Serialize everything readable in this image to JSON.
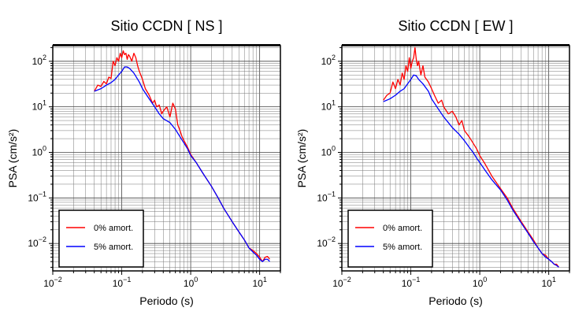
{
  "chart_data": [
    {
      "type": "line",
      "title": "Sitio CCDN [ NS ]",
      "xlabel": "Periodo (s)",
      "ylabel": "PSA (cm/s²)",
      "xscale": "log",
      "yscale": "log",
      "xlim": [
        0.01,
        20
      ],
      "ylim": [
        0.0025,
        220
      ],
      "grid": true,
      "legend_position": "bottom-left",
      "xticks": [
        {
          "value": 0.01,
          "base": "10",
          "exp": "−2"
        },
        {
          "value": 0.1,
          "base": "10",
          "exp": "−1"
        },
        {
          "value": 1,
          "base": "10",
          "exp": "0"
        },
        {
          "value": 10,
          "base": "10",
          "exp": "1"
        }
      ],
      "yticks": [
        {
          "value": 100,
          "label": "10²",
          "base": "10",
          "exp": "2"
        },
        {
          "value": 10,
          "label": "10¹",
          "base": "10",
          "exp": "1"
        },
        {
          "value": 1,
          "label": "10⁰",
          "base": "10",
          "exp": "0"
        },
        {
          "value": 0.1,
          "label": "10⁻¹",
          "base": "10",
          "exp": "−1"
        },
        {
          "value": 0.01,
          "label": "10⁻²",
          "base": "10",
          "exp": "−2"
        }
      ],
      "series": [
        {
          "name": "0% amort.",
          "color": "#ff0000",
          "x": [
            0.04,
            0.045,
            0.05,
            0.055,
            0.06,
            0.065,
            0.07,
            0.075,
            0.08,
            0.085,
            0.09,
            0.095,
            0.1,
            0.105,
            0.11,
            0.115,
            0.12,
            0.125,
            0.13,
            0.14,
            0.15,
            0.16,
            0.17,
            0.18,
            0.2,
            0.22,
            0.25,
            0.28,
            0.3,
            0.32,
            0.35,
            0.38,
            0.4,
            0.45,
            0.5,
            0.55,
            0.6,
            0.65,
            0.7,
            0.75,
            0.8,
            0.9,
            1.0,
            1.2,
            1.5,
            2,
            2.5,
            3,
            4,
            5,
            6,
            7,
            8,
            9,
            10,
            11,
            12,
            13,
            14
          ],
          "y": [
            22,
            30,
            28,
            36,
            32,
            45,
            42,
            100,
            80,
            120,
            100,
            150,
            120,
            170,
            140,
            150,
            110,
            140,
            130,
            100,
            150,
            120,
            80,
            60,
            40,
            25,
            18,
            12,
            14,
            10,
            11,
            7,
            8,
            10,
            6,
            12,
            9,
            4,
            3,
            2.2,
            1.8,
            1.3,
            0.9,
            0.6,
            0.35,
            0.18,
            0.1,
            0.06,
            0.03,
            0.018,
            0.012,
            0.008,
            0.007,
            0.006,
            0.005,
            0.004,
            0.005,
            0.0052,
            0.0045
          ]
        },
        {
          "name": "5% amort.",
          "color": "#0000ff",
          "x": [
            0.04,
            0.05,
            0.06,
            0.07,
            0.08,
            0.09,
            0.1,
            0.11,
            0.12,
            0.13,
            0.15,
            0.18,
            0.2,
            0.25,
            0.3,
            0.35,
            0.4,
            0.5,
            0.6,
            0.7,
            0.8,
            0.9,
            1.0,
            1.2,
            1.5,
            2,
            2.5,
            3,
            4,
            5,
            6,
            7,
            8,
            9,
            10,
            11,
            12,
            13,
            14
          ],
          "y": [
            22,
            25,
            30,
            34,
            40,
            50,
            60,
            75,
            75,
            70,
            55,
            35,
            25,
            15,
            10,
            7,
            5.5,
            4.5,
            3.2,
            2.2,
            1.6,
            1.2,
            0.85,
            0.6,
            0.35,
            0.18,
            0.1,
            0.06,
            0.03,
            0.018,
            0.012,
            0.008,
            0.0065,
            0.0055,
            0.0045,
            0.004,
            0.0045,
            0.0045,
            0.004
          ]
        }
      ]
    },
    {
      "type": "line",
      "title": "Sitio CCDN [ EW ]",
      "xlabel": "Periodo (s)",
      "ylabel": "PSA (cm/s²)",
      "xscale": "log",
      "yscale": "log",
      "xlim": [
        0.01,
        20
      ],
      "ylim": [
        0.0025,
        220
      ],
      "grid": true,
      "legend_position": "bottom-left",
      "xticks": [
        {
          "value": 0.01,
          "base": "10",
          "exp": "−2"
        },
        {
          "value": 0.1,
          "base": "10",
          "exp": "−1"
        },
        {
          "value": 1,
          "base": "10",
          "exp": "0"
        },
        {
          "value": 10,
          "base": "10",
          "exp": "1"
        }
      ],
      "yticks": [
        {
          "value": 100,
          "label": "10²",
          "base": "10",
          "exp": "2"
        },
        {
          "value": 10,
          "label": "10¹",
          "base": "10",
          "exp": "1"
        },
        {
          "value": 1,
          "label": "10⁰",
          "base": "10",
          "exp": "0"
        },
        {
          "value": 0.1,
          "label": "10⁻¹",
          "base": "10",
          "exp": "−1"
        },
        {
          "value": 0.01,
          "label": "10⁻²",
          "base": "10",
          "exp": "−2"
        }
      ],
      "series": [
        {
          "name": "0% amort.",
          "color": "#ff0000",
          "x": [
            0.04,
            0.045,
            0.05,
            0.055,
            0.06,
            0.065,
            0.07,
            0.075,
            0.08,
            0.085,
            0.09,
            0.095,
            0.1,
            0.105,
            0.11,
            0.115,
            0.12,
            0.125,
            0.13,
            0.14,
            0.15,
            0.16,
            0.18,
            0.2,
            0.22,
            0.25,
            0.28,
            0.3,
            0.35,
            0.4,
            0.45,
            0.5,
            0.55,
            0.6,
            0.7,
            0.8,
            0.9,
            1.0,
            1.2,
            1.5,
            2,
            2.5,
            3,
            4,
            5,
            6,
            7,
            8,
            9,
            10,
            11,
            12,
            13,
            14
          ],
          "y": [
            14,
            18,
            20,
            35,
            25,
            40,
            30,
            55,
            40,
            80,
            60,
            120,
            70,
            100,
            120,
            200,
            110,
            80,
            100,
            50,
            80,
            45,
            35,
            25,
            18,
            12,
            14,
            10,
            7,
            8,
            6,
            4,
            5,
            3,
            2.2,
            1.6,
            1.2,
            0.85,
            0.55,
            0.3,
            0.16,
            0.1,
            0.06,
            0.03,
            0.018,
            0.012,
            0.008,
            0.006,
            0.0055,
            0.0045,
            0.004,
            0.0035,
            0.0035,
            0.003
          ]
        },
        {
          "name": "5% amort.",
          "color": "#0000ff",
          "x": [
            0.04,
            0.05,
            0.06,
            0.07,
            0.08,
            0.09,
            0.1,
            0.11,
            0.12,
            0.13,
            0.15,
            0.18,
            0.2,
            0.25,
            0.3,
            0.35,
            0.4,
            0.5,
            0.6,
            0.7,
            0.8,
            0.9,
            1.0,
            1.2,
            1.5,
            2,
            2.5,
            3,
            4,
            5,
            6,
            7,
            8,
            9,
            10,
            11,
            12,
            13,
            14
          ],
          "y": [
            13,
            15,
            18,
            22,
            25,
            32,
            40,
            50,
            48,
            40,
            32,
            22,
            15,
            9,
            6,
            4.5,
            3.5,
            2.5,
            1.8,
            1.3,
            1.0,
            0.75,
            0.6,
            0.4,
            0.25,
            0.15,
            0.09,
            0.055,
            0.028,
            0.017,
            0.011,
            0.008,
            0.006,
            0.005,
            0.0045,
            0.004,
            0.0035,
            0.0033,
            0.003
          ]
        }
      ]
    }
  ]
}
